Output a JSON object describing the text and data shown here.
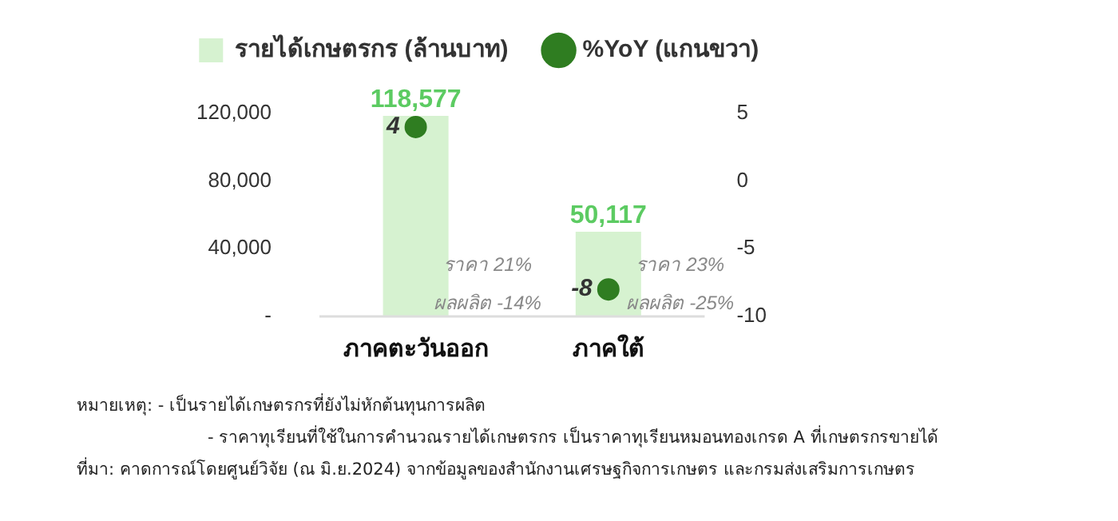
{
  "chart_data": {
    "type": "bar",
    "categories": [
      "ภาคตะวันออก",
      "ภาคใต้"
    ],
    "series": [
      {
        "name": "รายได้เกษตรกร (ล้านบาท)",
        "color": "#d6f2d0",
        "values": [
          118577,
          50117
        ],
        "value_labels": [
          "118,577",
          "50,117"
        ]
      },
      {
        "name": "%YoY (แกนขวา)",
        "type": "scatter",
        "axis": "y2",
        "x": [
          "ภาคตะวันออก",
          "ภาคใต้"
        ],
        "color": "#2f7d21",
        "values": [
          4,
          -8
        ],
        "value_labels": [
          "4",
          "-8"
        ]
      }
    ],
    "ylim": [
      0,
      120000
    ],
    "yticks": [
      {
        "value": 0,
        "label": "-"
      },
      {
        "value": 40000,
        "label": "40,000"
      },
      {
        "value": 80000,
        "label": "80,000"
      },
      {
        "value": 120000,
        "label": "120,000"
      }
    ],
    "y2lim": [
      -10,
      5
    ],
    "y2ticks": [
      -10,
      -5,
      0,
      5
    ],
    "legend": "top",
    "marker": "circle",
    "annotations": [
      "ราคา 21%",
      "ผลผลิต -14%",
      "ราคา 23%",
      "ผลผลิต -25%",
      "หมายเหตุ: - เป็นรายได้เกษตรกรที่ยังไม่หักต้นทุนการผลิต",
      "- ราคาทุเรียนที่ใช้ในการคำนวณรายได้เกษตรกร เป็นราคาทุเรียนหมอนทองเกรด A ที่เกษตรกรขายได้",
      "ที่มา: คาดการณ์โดยศูนย์วิจัย (ณ มิ.ย.2024) จากข้อมูลของสำนักงานเศรษฐกิจการเกษตร และกรมส่งเสริมการเกษตร"
    ]
  }
}
